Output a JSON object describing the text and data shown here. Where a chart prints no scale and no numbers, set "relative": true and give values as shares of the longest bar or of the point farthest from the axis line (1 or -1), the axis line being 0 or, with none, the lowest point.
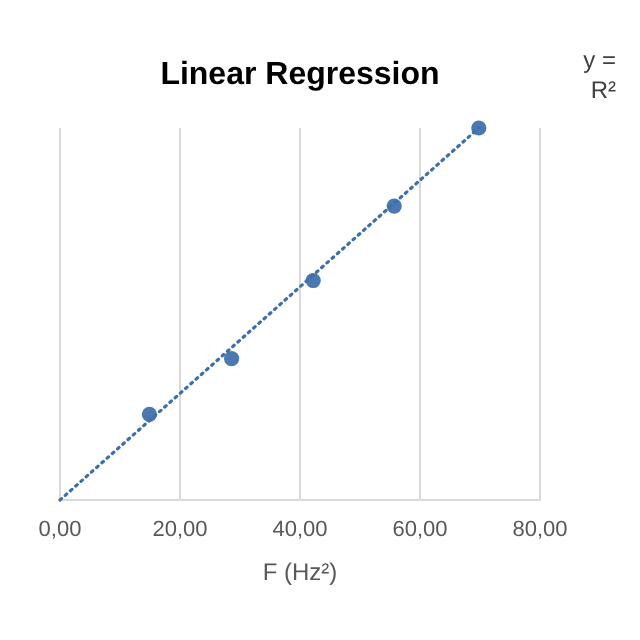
{
  "chart_data": {
    "type": "scatter",
    "title": "Linear Regression",
    "xlabel": "F (Hz²)",
    "relative": true,
    "xlim": [
      0,
      80
    ],
    "xticks": [
      {
        "value": 0,
        "label": "0,00"
      },
      {
        "value": 20,
        "label": "20,00"
      },
      {
        "value": 40,
        "label": "40,00"
      },
      {
        "value": 60,
        "label": "60,00"
      },
      {
        "value": 80,
        "label": "80,00"
      }
    ],
    "grid": "x",
    "annotations": [
      "y =",
      "R²"
    ],
    "series": [
      {
        "color": "#4a78b0",
        "marker": "circle",
        "x": [
          14.9,
          28.6,
          42.2,
          55.7,
          69.8
        ],
        "values": [
          0.23,
          0.38,
          0.59,
          0.79,
          1
        ]
      },
      {
        "type": "line",
        "color": "#3f6fa8",
        "marker": "none",
        "line_style": "dotted",
        "x": [
          0,
          69.8
        ],
        "values": [
          0,
          1
        ]
      }
    ]
  }
}
